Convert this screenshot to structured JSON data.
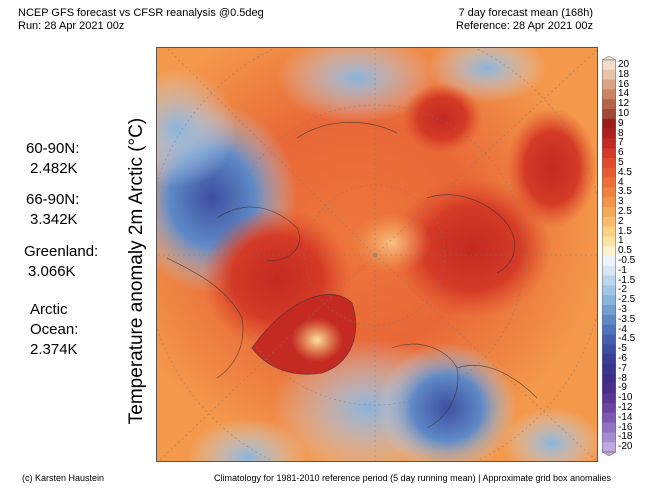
{
  "header": {
    "title": "NCEP GFS forecast vs CFSR reanalysis @0.5deg",
    "run": "Run: 28 Apr 2021 00z",
    "mean": "7 day forecast mean (168h)",
    "reference": "Reference: 28 Apr 2021 00z"
  },
  "stats": [
    {
      "region": "60-90N:",
      "value": "2.482K"
    },
    {
      "region": "66-90N:",
      "value": "3.342K"
    },
    {
      "region": "Greenland:",
      "value": "3.066K"
    },
    {
      "region_line1": "Arctic",
      "region_line2": "Ocean:",
      "value": "2.374K"
    }
  ],
  "map": {
    "ylabel": "Temperature anomaly 2m Arctic (°C)"
  },
  "colorbar": {
    "labels": [
      "20",
      "18",
      "16",
      "14",
      "12",
      "10",
      "9",
      "8",
      "7",
      "6",
      "5",
      "4.5",
      "4",
      "3.5",
      "3",
      "2.5",
      "2",
      "1.5",
      "1",
      "0.5",
      "-0.5",
      "-1",
      "-1.5",
      "-2",
      "-2.5",
      "-3",
      "-3.5",
      "-4",
      "-4.5",
      "-5",
      "-6",
      "-7",
      "-8",
      "-9",
      "-10",
      "-12",
      "-14",
      "-16",
      "-18",
      "-20"
    ],
    "colors": [
      "#f2dccb",
      "#e8c3a8",
      "#d9a585",
      "#c98563",
      "#b5644a",
      "#a34836",
      "#9e1b1b",
      "#b11f1f",
      "#c42a22",
      "#d43a26",
      "#e04b2b",
      "#e65c31",
      "#ec6e38",
      "#f08240",
      "#f39549",
      "#f6a957",
      "#f8bd6a",
      "#fad081",
      "#fce2a2",
      "#fef1cf",
      "#eef4fb",
      "#d6e6f5",
      "#bdd6ee",
      "#a3c5e6",
      "#8ab4dd",
      "#729fd2",
      "#5e89c6",
      "#4f73ba",
      "#4460ad",
      "#3d4ea1",
      "#3a3f96",
      "#3b348c",
      "#3f2e87",
      "#4a2f8a",
      "#5a3795",
      "#6b45a3",
      "#7e58b2",
      "#9270c2",
      "#a88bd1",
      "#c0a8e0"
    ]
  },
  "footer": {
    "credit": "(c) Karsten Haustein",
    "note": "Climatology for 1981-2010 reference period (5 day running mean) | Approximate grid box anomalies"
  }
}
